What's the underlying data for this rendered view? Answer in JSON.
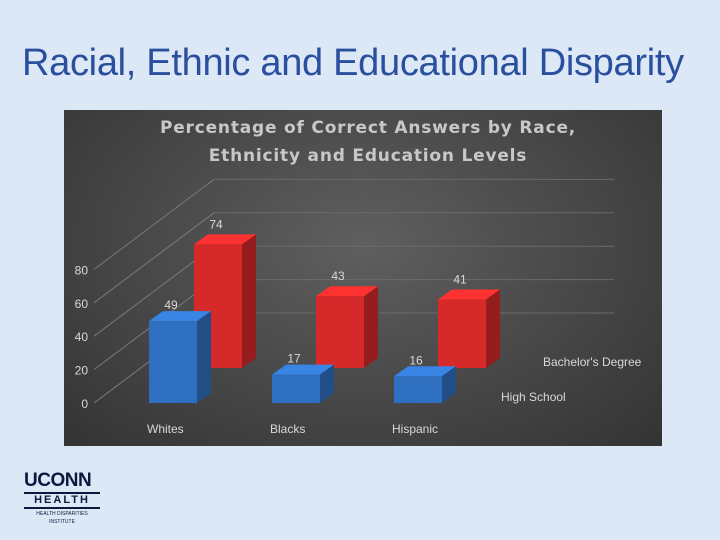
{
  "slide": {
    "title": "Racial, Ethnic and Educational Disparity"
  },
  "logo": {
    "word": "UCONN",
    "sub": "HEALTH",
    "institute_line1": "HEALTH DISPARITIES",
    "institute_line2": "INSTITUTE"
  },
  "chart_data": {
    "type": "bar",
    "style": "3d-clustered",
    "title_line1": "Percentage of Correct Answers by Race,",
    "title_line2": "Ethnicity and Education Levels",
    "categories": [
      "Whites",
      "Blacks",
      "Hispanic"
    ],
    "series": [
      {
        "name": "High School",
        "values": [
          49,
          17,
          16
        ],
        "color": "#2f6fc0"
      },
      {
        "name": "Bachelor's Degree",
        "values": [
          74,
          43,
          41
        ],
        "color": "#d62a2a"
      }
    ],
    "ylim": [
      0,
      80
    ],
    "yticks": [
      0,
      20,
      40,
      60,
      80
    ],
    "grid": true,
    "background": "#4a4a4a"
  }
}
